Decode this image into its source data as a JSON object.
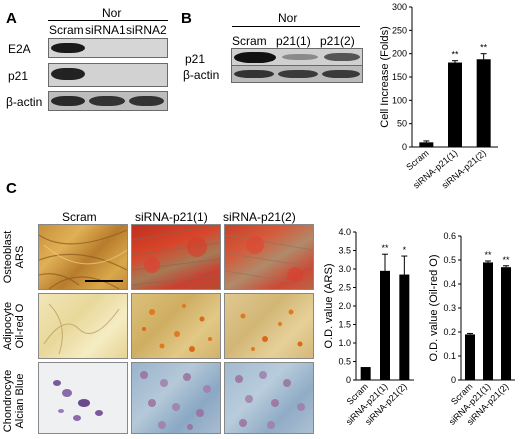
{
  "panels": {
    "a": "A",
    "b": "B",
    "c": "C"
  },
  "panel_a": {
    "condition": "Nor",
    "lanes": [
      "Scram",
      "siRNA1",
      "siRNA2"
    ],
    "rows": [
      "E2A",
      "p21",
      "β-actin"
    ]
  },
  "panel_b": {
    "condition": "Nor",
    "lanes": [
      "Scram",
      "p21(1)",
      "p21(2)"
    ],
    "rows": [
      "p21",
      "β-actin"
    ]
  },
  "panel_c": {
    "columns": [
      "Scram",
      "siRNA-p21(1)",
      "siRNA-p21(2)"
    ],
    "rows": [
      {
        "line1": "Osteoblast",
        "line2": "ARS"
      },
      {
        "line1": "Adipocyte",
        "line2": "Oil-red O"
      },
      {
        "line1": "Chondrocyte",
        "line2": "Alcian Blue"
      }
    ]
  },
  "chart_data": [
    {
      "type": "bar",
      "categories": [
        "Scram",
        "siRNA-p21(1)",
        "siRNA-p21(2)"
      ],
      "values": [
        10,
        181,
        188
      ],
      "errors": [
        3,
        4,
        12
      ],
      "annotations": [
        "",
        "**",
        "**"
      ],
      "title": "",
      "xlabel": "",
      "ylabel": "Cell Increase (Folds)",
      "ylim": [
        0,
        300
      ],
      "yticks": [
        "0",
        "50",
        "100",
        "150",
        "200",
        "250",
        "300"
      ],
      "color": "#000000"
    },
    {
      "type": "bar",
      "categories": [
        "Scram",
        "siRNA-p21(1)",
        "siRNA-p21(2)"
      ],
      "values": [
        0.35,
        2.95,
        2.85
      ],
      "errors": [
        0,
        0.45,
        0.5
      ],
      "annotations": [
        "",
        "**",
        "*"
      ],
      "title": "",
      "xlabel": "",
      "ylabel": "O.D. value (ARS)",
      "ylim": [
        0,
        4.0
      ],
      "yticks": [
        "0",
        "0.5",
        "1.0",
        "1.5",
        "2.0",
        "2.5",
        "3.0",
        "3.5",
        "4.0"
      ],
      "color": "#000000"
    },
    {
      "type": "bar",
      "categories": [
        "Scram",
        "siRNA-p21(1)",
        "siRNA-p21(2)"
      ],
      "values": [
        0.19,
        0.49,
        0.47
      ],
      "errors": [
        0.004,
        0.006,
        0.006
      ],
      "annotations": [
        "",
        "**",
        "**"
      ],
      "title": "",
      "xlabel": "",
      "ylabel": "O.D. value (Oil-red O)",
      "ylim": [
        0,
        0.6
      ],
      "yticks": [
        "0",
        "0.1",
        "0.2",
        "0.3",
        "0.4",
        "0.5",
        "0.6"
      ],
      "color": "#000000"
    }
  ]
}
